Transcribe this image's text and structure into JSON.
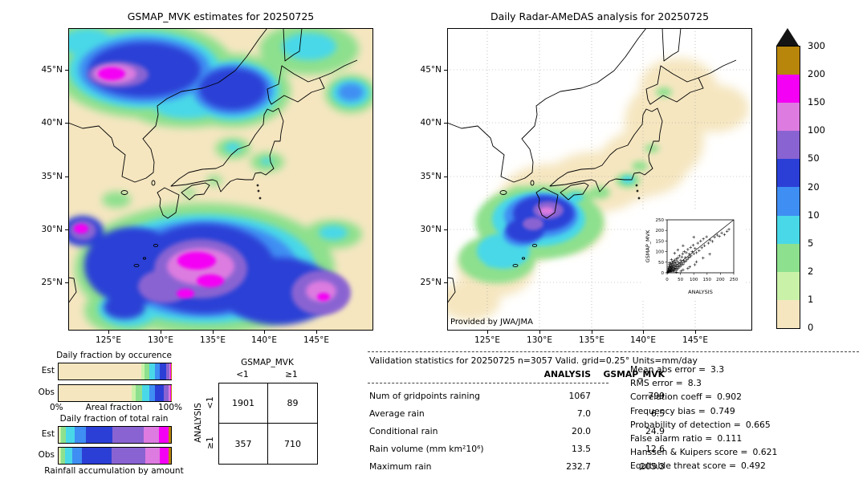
{
  "chart_data": {
    "type": "composite",
    "maps": {
      "left": {
        "type": "map",
        "title": "GSMAP_MVK estimates for 20250725",
        "lat_ticks": [
          "45°N",
          "40°N",
          "35°N",
          "30°N",
          "25°N"
        ],
        "lon_ticks": [
          "125°E",
          "130°E",
          "135°E",
          "140°E",
          "145°E"
        ],
        "units": "mm/day"
      },
      "right": {
        "type": "map",
        "title": "Daily Radar-AMeDAS analysis for 20250725",
        "lat_ticks": [
          "45°N",
          "40°N",
          "35°N",
          "30°N",
          "25°N"
        ],
        "lon_ticks": [
          "125°E",
          "130°E",
          "135°E",
          "140°E",
          "145°E"
        ],
        "credit": "Provided by JWA/JMA",
        "units": "mm/day"
      }
    },
    "colorbar": {
      "tick_labels": [
        "300",
        "200",
        "150",
        "100",
        "50",
        "20",
        "10",
        "5",
        "2",
        "1",
        "0"
      ],
      "colors_low_to_high": [
        "#f5e6c0",
        "#c9f2a8",
        "#8de08d",
        "#49d8e8",
        "#3f8ef3",
        "#2b3fd6",
        "#8a63d2",
        "#dd7be0",
        "#f400f4",
        "#b8860b"
      ],
      "over_color": "#141414"
    },
    "fractions": {
      "occurrence": {
        "title": "Daily fraction by occurence",
        "rows": [
          {
            "label": "Est",
            "values": [
              73.9,
              2.5,
              4.0,
              5.0,
              4.5,
              6.0,
              2.5,
              1.0,
              0.4,
              0.2
            ]
          },
          {
            "label": "Obs",
            "values": [
              65.1,
              3.5,
              5.5,
              6.5,
              5.5,
              7.5,
              4.0,
              1.6,
              0.6,
              0.2
            ]
          }
        ]
      },
      "total_rain": {
        "title": "Daily fraction of total rain",
        "rows": [
          {
            "label": "Est",
            "values": [
              1.0,
              1.5,
              4.0,
              7.5,
              10.0,
              24.0,
              28.0,
              13.0,
              9.0,
              2.0
            ]
          },
          {
            "label": "Obs",
            "values": [
              0.8,
              1.2,
              3.5,
              6.5,
              9.0,
              26.0,
              30.0,
              13.0,
              8.0,
              2.0
            ]
          }
        ]
      },
      "axis_left": "0%",
      "axis_center": "Areal fraction",
      "axis_right": "100%",
      "footer": "Rainfall accumulation by amount"
    },
    "contingency": {
      "type": "table",
      "col_group": "GSMAP_MVK",
      "row_group": "ANALYSIS",
      "col_labels": [
        "<1",
        "≥1"
      ],
      "row_labels": [
        "<1",
        "≥1"
      ],
      "cells": [
        [
          1901,
          89
        ],
        [
          357,
          710
        ]
      ]
    },
    "validation": {
      "type": "table",
      "title": "Validation statistics for 20250725  n=3057 Valid. grid=0.25° Units=mm/day",
      "col_headers": [
        "ANALYSIS",
        "GSMAP_MVK"
      ],
      "rows": [
        {
          "label": "Num of gridpoints raining",
          "analysis": "1067",
          "gsmap": "799"
        },
        {
          "label": "Average rain",
          "analysis": "7.0",
          "gsmap": "6.5"
        },
        {
          "label": "Conditional rain",
          "analysis": "20.0",
          "gsmap": "24.9"
        },
        {
          "label": "Rain volume (mm km²10⁶)",
          "analysis": "13.5",
          "gsmap": "12.6"
        },
        {
          "label": "Maximum rain",
          "analysis": "232.7",
          "gsmap": "205.3"
        }
      ]
    },
    "scores": [
      {
        "label": "Mean abs error =",
        "value": "3.3"
      },
      {
        "label": "RMS error =",
        "value": "8.3"
      },
      {
        "label": "Correlation coeff =",
        "value": "0.902"
      },
      {
        "label": "Frequency bias =",
        "value": "0.749"
      },
      {
        "label": "Probability of detection =",
        "value": "0.665"
      },
      {
        "label": "False alarm ratio =",
        "value": "0.111"
      },
      {
        "label": "Hanssen & Kuipers score =",
        "value": "0.621"
      },
      {
        "label": "Equitable threat score =",
        "value": "0.492"
      }
    ],
    "scatter": {
      "type": "scatter",
      "xlabel": "ANALYSIS",
      "ylabel": "GSMAP_MVK",
      "xlim": [
        0,
        250
      ],
      "ylim": [
        0,
        250
      ],
      "ticks": [
        0,
        50,
        100,
        150,
        200,
        250
      ],
      "points": [
        [
          2,
          2
        ],
        [
          3,
          7
        ],
        [
          4,
          15
        ],
        [
          5,
          3
        ],
        [
          5,
          22
        ],
        [
          6,
          10
        ],
        [
          7,
          30
        ],
        [
          8,
          5
        ],
        [
          8,
          18
        ],
        [
          9,
          40
        ],
        [
          10,
          8
        ],
        [
          10,
          25
        ],
        [
          11,
          14
        ],
        [
          12,
          33
        ],
        [
          13,
          5
        ],
        [
          13,
          20
        ],
        [
          14,
          45
        ],
        [
          15,
          10
        ],
        [
          15,
          28
        ],
        [
          16,
          18
        ],
        [
          17,
          38
        ],
        [
          18,
          7
        ],
        [
          18,
          24
        ],
        [
          19,
          50
        ],
        [
          20,
          15
        ],
        [
          20,
          32
        ],
        [
          21,
          42
        ],
        [
          22,
          10
        ],
        [
          23,
          27
        ],
        [
          24,
          55
        ],
        [
          25,
          18
        ],
        [
          25,
          36
        ],
        [
          26,
          8
        ],
        [
          27,
          46
        ],
        [
          28,
          22
        ],
        [
          29,
          60
        ],
        [
          30,
          12
        ],
        [
          30,
          34
        ],
        [
          32,
          48
        ],
        [
          33,
          20
        ],
        [
          34,
          65
        ],
        [
          35,
          28
        ],
        [
          36,
          40
        ],
        [
          38,
          15
        ],
        [
          38,
          55
        ],
        [
          40,
          30
        ],
        [
          41,
          70
        ],
        [
          42,
          22
        ],
        [
          44,
          48
        ],
        [
          45,
          35
        ],
        [
          46,
          80
        ],
        [
          48,
          28
        ],
        [
          50,
          42
        ],
        [
          51,
          60
        ],
        [
          53,
          35
        ],
        [
          55,
          75
        ],
        [
          56,
          48
        ],
        [
          58,
          90
        ],
        [
          60,
          40
        ],
        [
          62,
          58
        ],
        [
          64,
          100
        ],
        [
          65,
          50
        ],
        [
          68,
          72
        ],
        [
          70,
          55
        ],
        [
          72,
          95
        ],
        [
          75,
          62
        ],
        [
          78,
          110
        ],
        [
          80,
          70
        ],
        [
          83,
          88
        ],
        [
          85,
          75
        ],
        [
          88,
          120
        ],
        [
          90,
          80
        ],
        [
          94,
          100
        ],
        [
          98,
          130
        ],
        [
          100,
          90
        ],
        [
          100,
          168
        ],
        [
          105,
          115
        ],
        [
          110,
          95
        ],
        [
          115,
          140
        ],
        [
          120,
          105
        ],
        [
          126,
          150
        ],
        [
          130,
          118
        ],
        [
          136,
          160
        ],
        [
          140,
          128
        ],
        [
          148,
          170
        ],
        [
          155,
          140
        ],
        [
          162,
          155
        ],
        [
          170,
          148
        ],
        [
          178,
          168
        ],
        [
          188,
          178
        ],
        [
          196,
          172
        ],
        [
          205,
          188
        ],
        [
          215,
          180
        ],
        [
          225,
          196
        ],
        [
          232,
          205
        ],
        [
          60,
          128
        ],
        [
          40,
          108
        ],
        [
          28,
          92
        ],
        [
          16,
          62
        ],
        [
          9,
          48
        ],
        [
          35,
          3
        ],
        [
          60,
          14
        ],
        [
          85,
          28
        ],
        [
          110,
          52
        ],
        [
          135,
          70
        ],
        [
          160,
          88
        ],
        [
          52,
          8
        ],
        [
          78,
          20
        ],
        [
          104,
          38
        ]
      ]
    }
  }
}
